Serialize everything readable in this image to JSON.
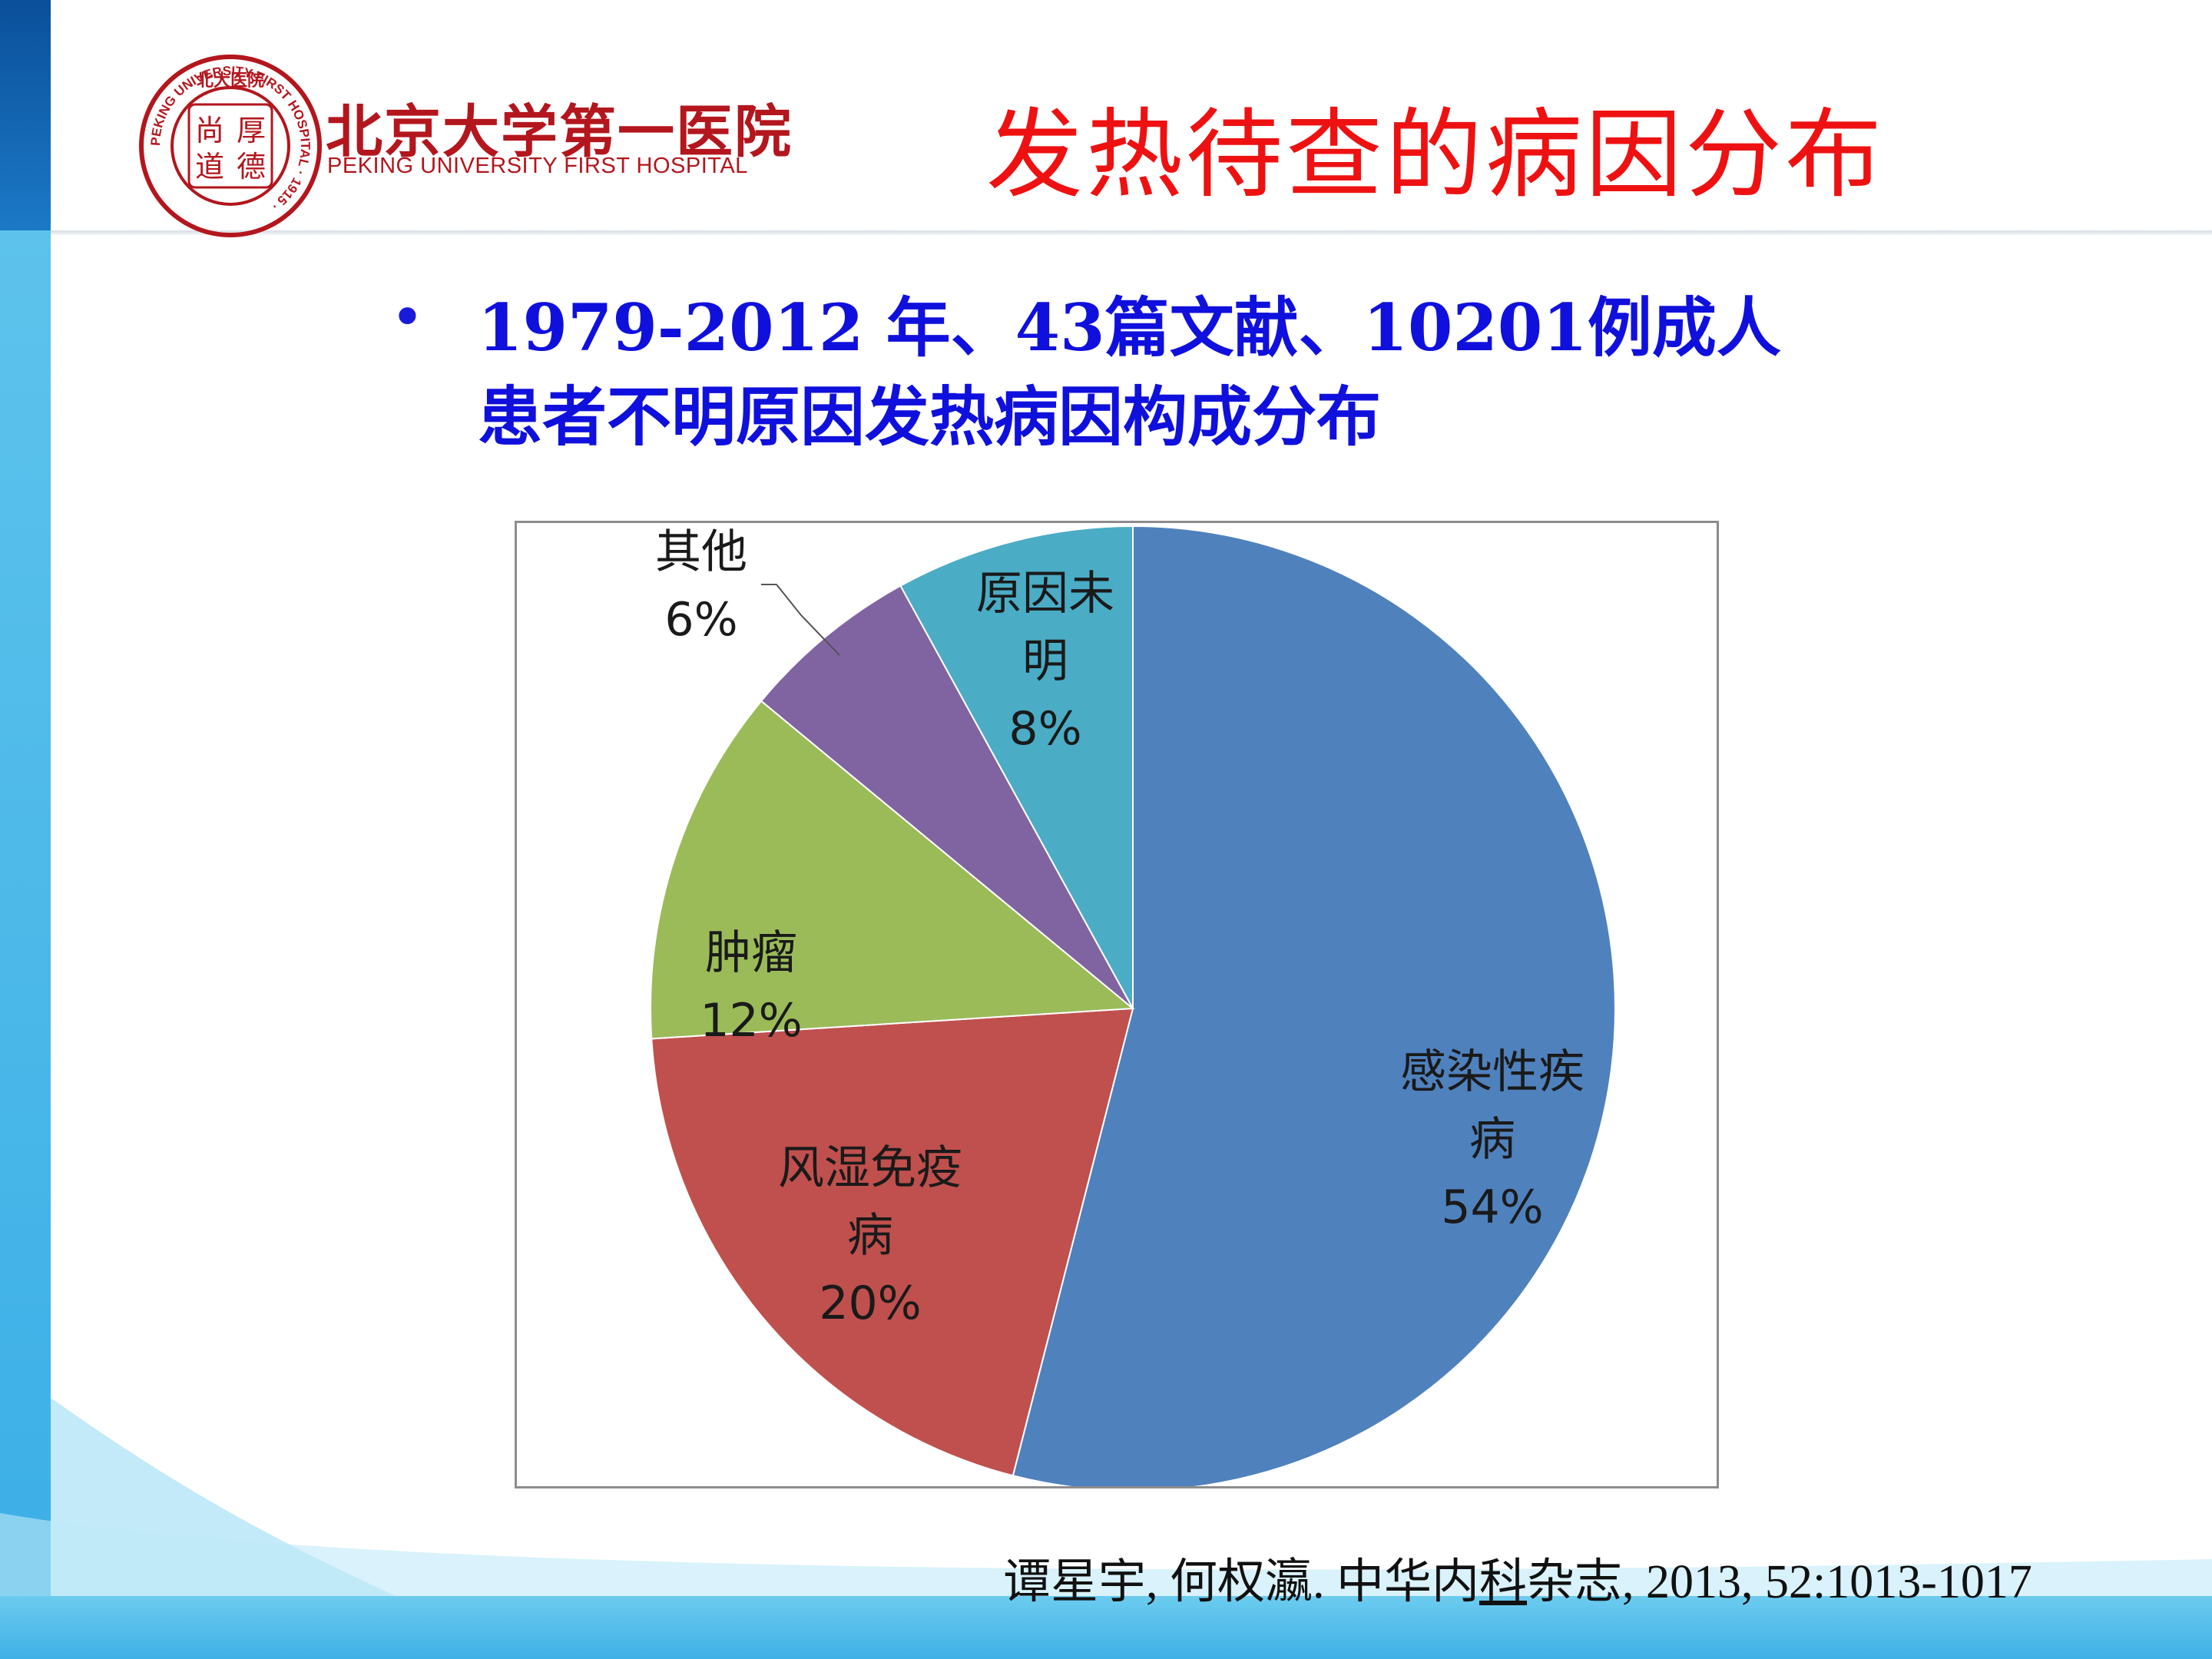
{
  "header": {
    "logo": {
      "seal_text_top": "北大医院",
      "seal_text_ring": "PEKING UNIVERSITY FIRST HOSPITAL · 1915 ·",
      "seal_center": [
        "尚",
        "厚",
        "道",
        "德"
      ]
    },
    "hospital_name_cn": "北京大学第一医院",
    "hospital_name_en": "PEKING UNIVERSITY FIRST HOSPITAL"
  },
  "title": "发热待查的病因分布",
  "bullet": {
    "line1": "1979-2012 年、43篇文献、10201例成人",
    "line2": "患者不明原因发热病因构成分布"
  },
  "citation": {
    "part1": "谭星宇, 何权瀛. 中华内",
    "underlined": "科",
    "part2": "杂志, 2013, 52:1013-1017"
  },
  "colors": {
    "title": "#ee1111",
    "bullet": "#1010dd",
    "brand_red": "#b3161d"
  },
  "chart_data": {
    "type": "pie",
    "start": "12 o'clock, clockwise",
    "slices": [
      {
        "label_lines": [
          "感染性疾",
          "病"
        ],
        "percent_label": "54%",
        "value": 54,
        "color": "#4f81bd"
      },
      {
        "label_lines": [
          "风湿免疫",
          "病"
        ],
        "percent_label": "20%",
        "value": 20,
        "color": "#c0504d"
      },
      {
        "label_lines": [
          "肿瘤"
        ],
        "percent_label": "12%",
        "value": 12,
        "color": "#9bbb59"
      },
      {
        "label_lines": [
          "其他"
        ],
        "percent_label": "6%",
        "value": 6,
        "color": "#8064a2"
      },
      {
        "label_lines": [
          "原因未",
          "明"
        ],
        "percent_label": "8%",
        "value": 8,
        "color": "#4bacc6"
      }
    ]
  }
}
